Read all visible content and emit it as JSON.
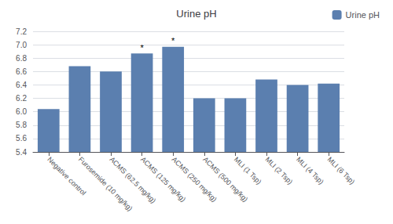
{
  "chart_data": {
    "type": "bar",
    "title": "Urine pH",
    "categories": [
      "Negative control",
      "Furosemide (10 mg/kg)",
      "ACMS (62.5 mg/kg)",
      "ACMS (125 mg/kg)",
      "ACMS (250 mg/kg)",
      "ACMS (500 mg/kg)",
      "MLI (1 Tsp)",
      "MLI (2 Tsp)",
      "MLI (4 Tsp)",
      "MLI (6 Tsp)"
    ],
    "series": [
      {
        "name": "Urine pH",
        "color": "#5b7faf",
        "values": [
          6.04,
          6.68,
          6.6,
          6.87,
          6.97,
          6.2,
          6.2,
          6.48,
          6.4,
          6.42
        ]
      }
    ],
    "ylim": [
      5.4,
      7.2
    ],
    "yticks": [
      5.4,
      5.6,
      5.8,
      {
        "value": 6.0,
        "label": "6.0"
      },
      6.2,
      6.4,
      6.6,
      6.8,
      {
        "value": 7.0,
        "label": "7.0"
      },
      7.2
    ],
    "grid": true,
    "legend": "upper right",
    "annotations": [
      {
        "text": "*",
        "category": "ACMS (125 mg/kg)"
      },
      {
        "text": "*",
        "category": "ACMS (250 mg/kg)"
      }
    ]
  }
}
